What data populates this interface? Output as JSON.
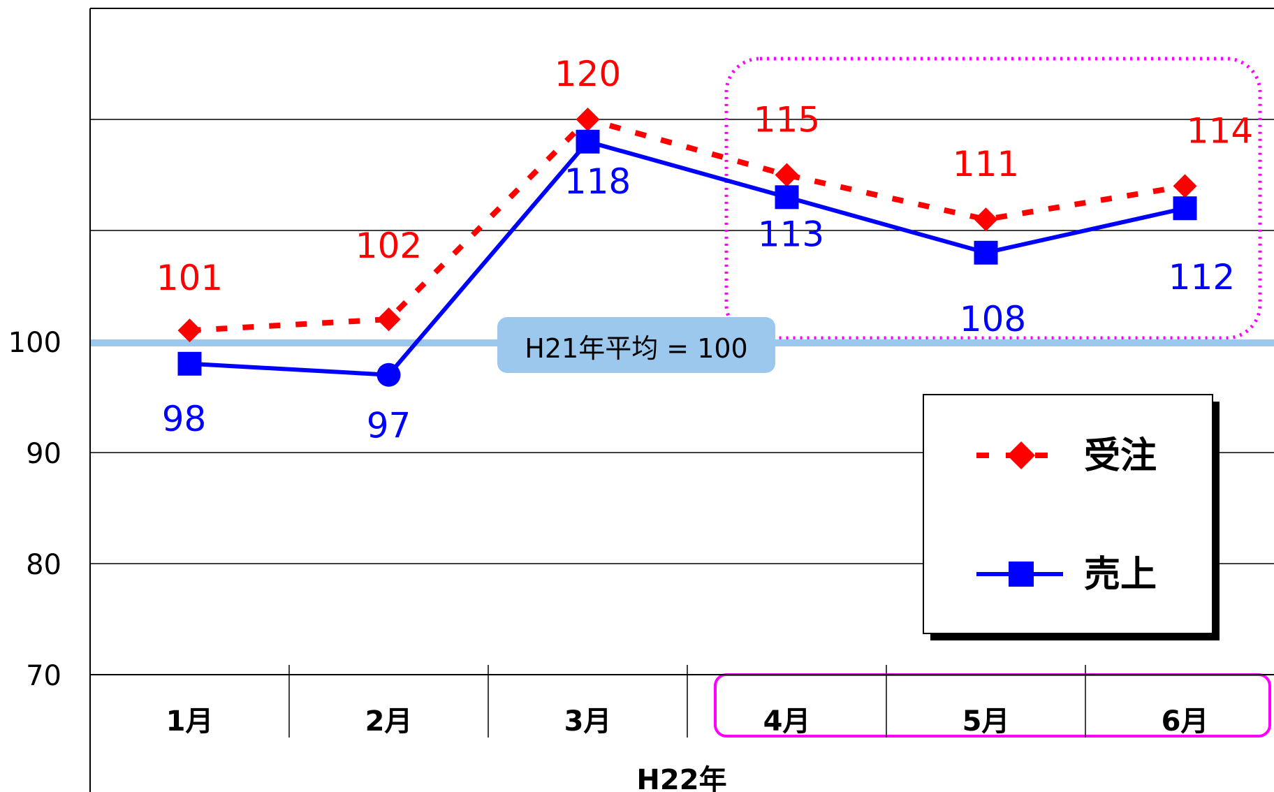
{
  "chart_data": {
    "type": "line",
    "categories": [
      "1月",
      "2月",
      "3月",
      "4月",
      "5月",
      "6月"
    ],
    "x_group_label": "H22年",
    "ylim": [
      70,
      130
    ],
    "yticks": [
      70,
      80,
      90,
      100
    ],
    "grid": true,
    "legend_position": "right",
    "series": [
      {
        "name": "受注",
        "values": [
          101,
          102,
          120,
          115,
          111,
          114
        ],
        "color": "#ff0000",
        "style": "dashed",
        "marker": "diamond"
      },
      {
        "name": "売上",
        "values": [
          98,
          97,
          118,
          113,
          108,
          112
        ],
        "color": "#0000ff",
        "style": "solid",
        "marker": "square"
      }
    ],
    "reference_line": {
      "value": 100,
      "label": "H21年平均 = 100",
      "color": "#9cc8ee"
    },
    "highlight_categories": [
      "4月",
      "5月",
      "6月"
    ],
    "highlight_color": "#ff00ff"
  }
}
